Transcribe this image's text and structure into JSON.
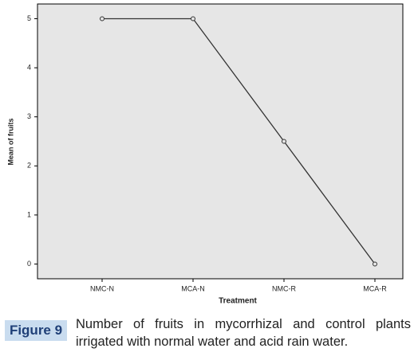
{
  "chart_data": {
    "type": "line",
    "y_label": "Mean of fruits",
    "x_label": "Treatment",
    "categories": [
      "NMC-N",
      "MCA-N",
      "NMC-R",
      "MCA-R"
    ],
    "values": [
      5,
      5,
      2.5,
      0
    ],
    "color": "#333333",
    "ylim": [
      -0.3,
      5.3
    ],
    "yticks": [
      0,
      1,
      2,
      3,
      4,
      5
    ]
  },
  "caption": {
    "label": "Figure 9",
    "text": "Number of fruits in mycorrhizal and control plants irrigated with normal water and acid rain water."
  }
}
